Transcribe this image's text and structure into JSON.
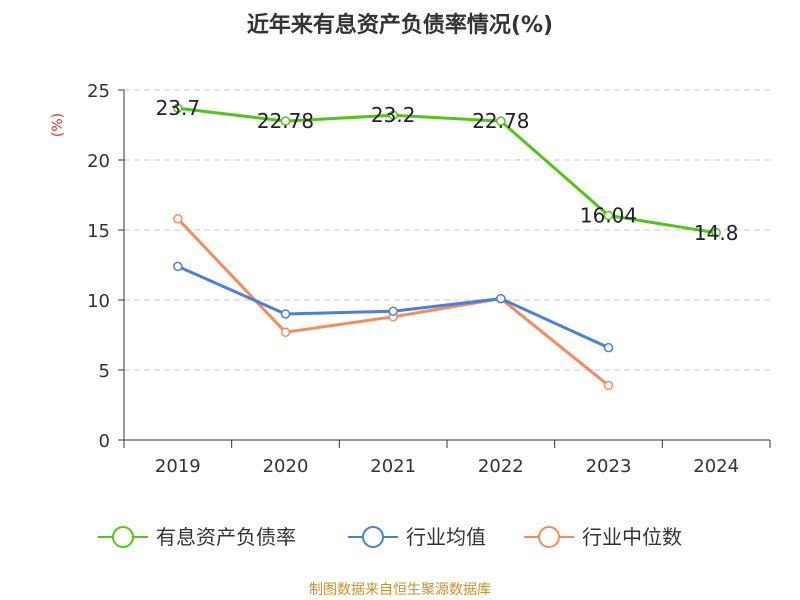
{
  "chart_data": {
    "type": "line",
    "title": "近年来有息资产负债率情况(%)",
    "ylabel": "(%)",
    "xlabel": "",
    "categories": [
      "2019",
      "2020",
      "2021",
      "2022",
      "2023",
      "2024"
    ],
    "ylim": [
      0,
      25
    ],
    "yticks": [
      0,
      5,
      10,
      15,
      20,
      25
    ],
    "grid": true,
    "legend_position": "bottom",
    "series": [
      {
        "name": "有息资产负债率",
        "color": "#52c41a",
        "values": [
          23.7,
          22.78,
          23.2,
          22.78,
          16.04,
          14.8
        ],
        "labels": [
          "23.7",
          "22.78",
          "23.2",
          "22.78",
          "16.04",
          "14.8"
        ]
      },
      {
        "name": "行业均值",
        "color": "#4a7fdc",
        "values": [
          12.4,
          9.0,
          9.2,
          10.1,
          6.6,
          null
        ]
      },
      {
        "name": "行业中位数",
        "color": "#f58b5a",
        "values": [
          15.8,
          7.7,
          8.8,
          10.1,
          3.9,
          null
        ]
      }
    ]
  },
  "source_note": "制图数据来自恒生聚源数据库"
}
